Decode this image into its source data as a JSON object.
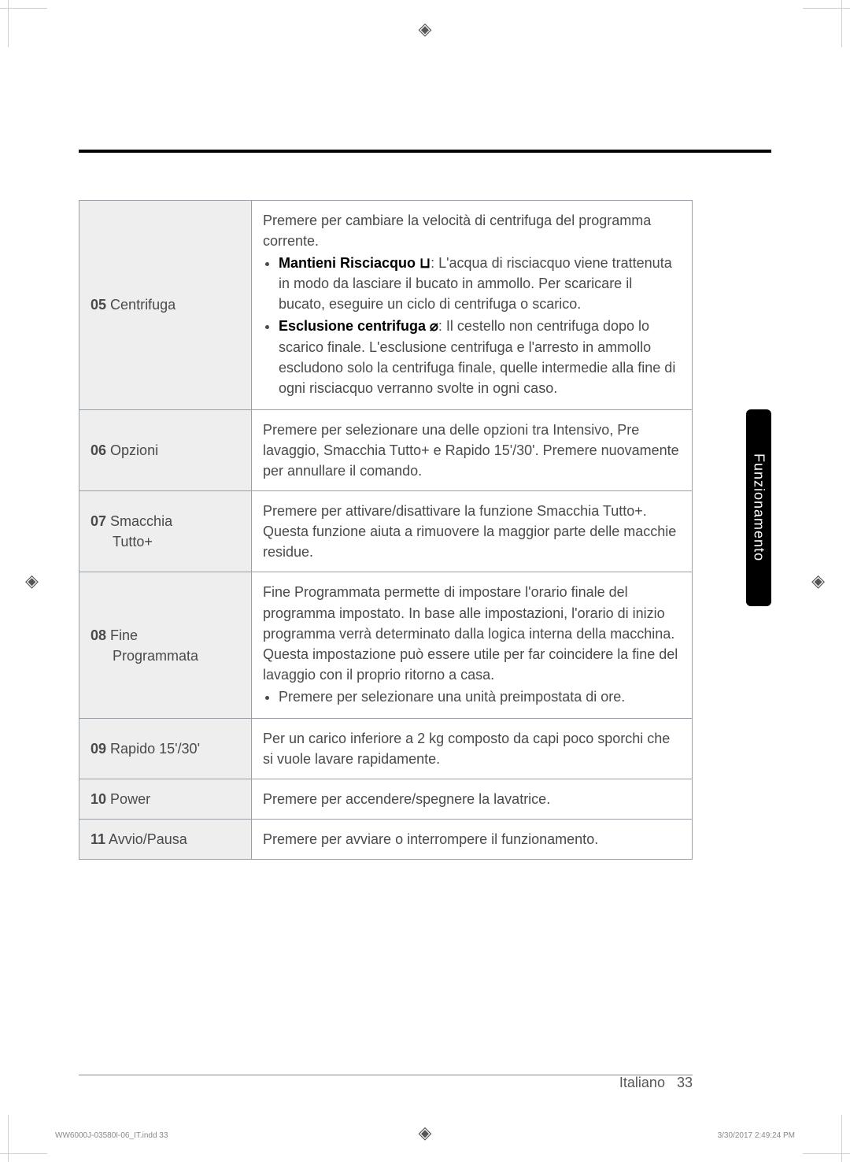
{
  "sideTab": "Funzionamento",
  "footer": {
    "lang": "Italiano",
    "page": "33"
  },
  "printInfo": {
    "left": "WW6000J-03580I-06_IT.indd   33",
    "right": "3/30/2017   2:49:24 PM"
  },
  "rows": [
    {
      "num": "05",
      "label": "Centrifuga",
      "body": {
        "intro": "Premere per cambiare la velocità di centrifuga del programma corrente.",
        "bullets": [
          {
            "bold": "Mantieni Risciacquo ⊔",
            "rest": ": L'acqua di risciacquo viene trattenuta in modo da lasciare il bucato in ammollo. Per scaricare il bucato, eseguire un ciclo di centrifuga o scarico."
          },
          {
            "bold": "Esclusione centrifuga ⌀",
            "rest": ": Il cestello non centrifuga dopo lo scarico finale. L'esclusione centrifuga e l'arresto in ammollo escludono solo la centrifuga finale, quelle intermedie alla fine di ogni risciacquo verranno svolte in ogni caso."
          }
        ]
      }
    },
    {
      "num": "06",
      "label": "Opzioni",
      "body": {
        "text": "Premere per selezionare una delle opzioni tra Intensivo, Pre lavaggio, Smacchia Tutto+ e Rapido 15'/30'. Premere nuovamente per annullare il comando."
      }
    },
    {
      "num": "07",
      "label": "Smacchia Tutto+",
      "labelIndent": true,
      "body": {
        "text": "Premere per attivare/disattivare la funzione Smacchia Tutto+. Questa funzione aiuta a rimuovere la maggior parte delle macchie residue."
      }
    },
    {
      "num": "08",
      "label": "Fine Programmata",
      "labelIndent": true,
      "body": {
        "intro": "Fine Programmata permette di impostare l'orario finale del programma impostato. In base alle impostazioni, l'orario di inizio programma verrà determinato dalla logica interna della macchina. Questa impostazione può essere utile per far coincidere la fine del lavaggio con il proprio ritorno a casa.",
        "bullets": [
          {
            "rest": "Premere per selezionare una unità preimpostata di ore."
          }
        ]
      }
    },
    {
      "num": "09",
      "label": "Rapido 15'/30'",
      "body": {
        "text": "Per un carico inferiore a 2 kg composto da capi poco sporchi che si vuole lavare rapidamente."
      }
    },
    {
      "num": "10",
      "label": "Power",
      "body": {
        "text": "Premere per accendere/spegnere la lavatrice."
      }
    },
    {
      "num": "11",
      "label": "Avvio/Pausa",
      "body": {
        "text": "Premere per avviare o interrompere il funzionamento."
      }
    }
  ]
}
